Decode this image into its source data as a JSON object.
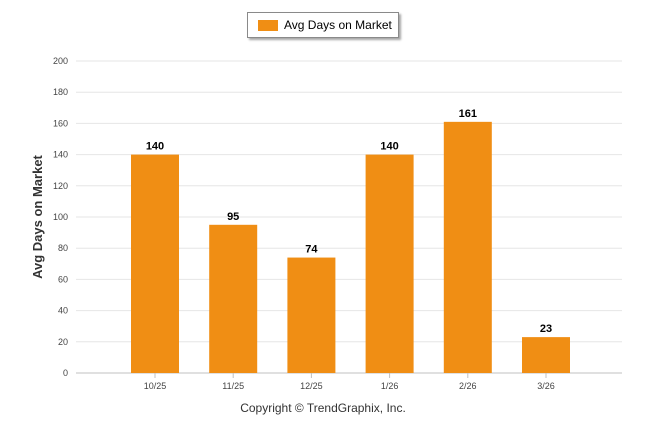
{
  "chart_data": {
    "type": "bar",
    "categories": [
      "10/25",
      "11/25",
      "12/25",
      "1/26",
      "2/26",
      "3/26"
    ],
    "series": [
      {
        "name": "Avg Days on Market",
        "values": [
          140,
          95,
          74,
          140,
          161,
          23
        ]
      }
    ],
    "data_labels": [
      "140",
      "95",
      "74",
      "140",
      "161",
      "23"
    ],
    "ylabel": "Avg Days on Market",
    "xlabel": "",
    "ylim": [
      0,
      200
    ],
    "yticks": [
      0,
      20,
      40,
      60,
      80,
      100,
      120,
      140,
      160,
      180,
      200
    ],
    "grid": true,
    "legend_position": "top-center",
    "bar_color": "#F08E14"
  },
  "legend": {
    "label": "Avg Days on Market"
  },
  "footer": {
    "copyright": "Copyright © TrendGraphix, Inc."
  }
}
